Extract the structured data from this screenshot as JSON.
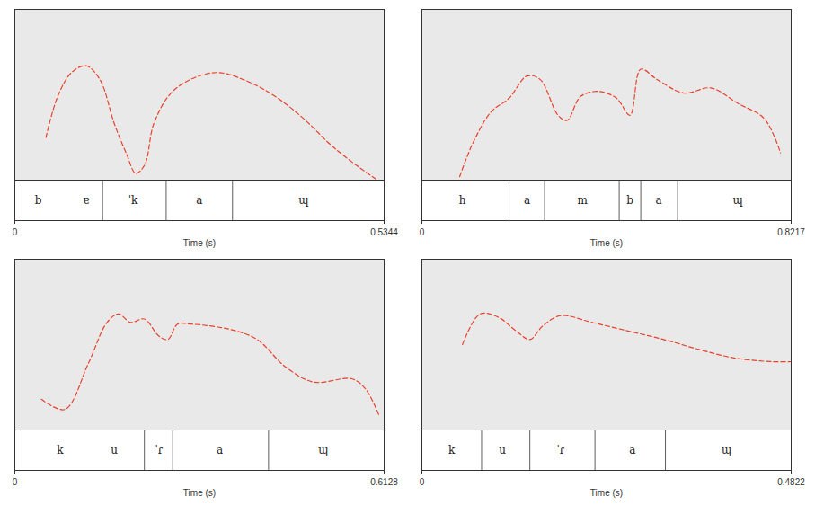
{
  "chart_data": [
    {
      "type": "line",
      "xlabel": "Time (s)",
      "xlim": [
        0,
        0.5344
      ],
      "xticks": [
        0,
        0.5344
      ],
      "ylim": [
        0,
        100
      ],
      "tick_labels": "x",
      "color": "#e8412c",
      "line_style": "dashed",
      "x": [
        0.045,
        0.062,
        0.082,
        0.103,
        0.123,
        0.144,
        0.162,
        0.175,
        0.188,
        0.201,
        0.226,
        0.26,
        0.295,
        0.336,
        0.377,
        0.418,
        0.459,
        0.5,
        0.525
      ],
      "values": [
        25,
        49,
        63,
        67,
        59,
        33,
        15,
        4,
        9,
        33,
        51,
        60,
        63,
        58,
        49,
        36,
        20,
        7,
        0
      ],
      "segments": {
        "boundaries": [
          0.127,
          0.219,
          0.315
        ],
        "labels": [
          {
            "text": "b",
            "time": 0.034
          },
          {
            "text": "ɐ",
            "time": 0.103
          },
          {
            "text": "ˈk",
            "time": 0.171
          },
          {
            "text": "a",
            "time": 0.267
          },
          {
            "text": "ɰ",
            "time": 0.418
          }
        ]
      }
    },
    {
      "type": "line",
      "xlabel": "Time (s)",
      "xlim": [
        0,
        0.8217
      ],
      "xticks": [
        0,
        0.8217
      ],
      "ylim": [
        0,
        100
      ],
      "tick_labels": "x",
      "color": "#e8412c",
      "line_style": "dashed",
      "x": [
        0.084,
        0.114,
        0.154,
        0.194,
        0.234,
        0.263,
        0.303,
        0.323,
        0.353,
        0.393,
        0.433,
        0.463,
        0.487,
        0.523,
        0.583,
        0.643,
        0.703,
        0.762,
        0.798
      ],
      "values": [
        2,
        22,
        40,
        48,
        61,
        59,
        38,
        35,
        49,
        52,
        48,
        38,
        65,
        59,
        51,
        54,
        45,
        36,
        16
      ],
      "segments": {
        "boundaries": [
          0.194,
          0.273,
          0.439,
          0.487,
          0.569
        ],
        "labels": [
          {
            "text": "h",
            "time": 0.09
          },
          {
            "text": "a",
            "time": 0.234
          },
          {
            "text": "m",
            "time": 0.357
          },
          {
            "text": "b",
            "time": 0.463
          },
          {
            "text": "a",
            "time": 0.527
          },
          {
            "text": "ɰ",
            "time": 0.703
          }
        ]
      }
    },
    {
      "type": "line",
      "xlabel": "Time (s)",
      "xlim": [
        0,
        0.6128
      ],
      "xticks": [
        0,
        0.6128
      ],
      "ylim": [
        0,
        100
      ],
      "tick_labels": "x",
      "color": "#e8412c",
      "line_style": "dashed",
      "x": [
        0.044,
        0.083,
        0.122,
        0.153,
        0.172,
        0.192,
        0.215,
        0.239,
        0.254,
        0.27,
        0.293,
        0.356,
        0.402,
        0.449,
        0.496,
        0.559,
        0.582,
        0.605
      ],
      "values": [
        18,
        12,
        39,
        63,
        68,
        63,
        65,
        55,
        53,
        62,
        62,
        59,
        53,
        37,
        28,
        30,
        24,
        8
      ],
      "segments": {
        "boundaries": [
          0.215,
          0.262,
          0.421
        ],
        "labels": [
          {
            "text": "k",
            "time": 0.075
          },
          {
            "text": "u",
            "time": 0.165
          },
          {
            "text": "ˈɾ",
            "time": 0.239
          },
          {
            "text": "a",
            "time": 0.34
          },
          {
            "text": "ɰ",
            "time": 0.512
          }
        ]
      }
    },
    {
      "type": "line",
      "xlabel": "Time (s)",
      "xlim": [
        0,
        0.4822
      ],
      "xticks": [
        0,
        0.4822
      ],
      "ylim": [
        0,
        100
      ],
      "tick_labels": "x",
      "color": "#e8412c",
      "line_style": "dashed",
      "x": [
        0.053,
        0.076,
        0.1,
        0.123,
        0.141,
        0.158,
        0.181,
        0.222,
        0.269,
        0.316,
        0.363,
        0.41,
        0.457,
        0.482
      ],
      "values": [
        50,
        68,
        66,
        58,
        53,
        61,
        67,
        63,
        58,
        53,
        47,
        42,
        40,
        40
      ],
      "segments": {
        "boundaries": [
          0.078,
          0.141,
          0.226,
          0.318
        ],
        "labels": [
          {
            "text": "k",
            "time": 0.039
          },
          {
            "text": "u",
            "time": 0.105
          },
          {
            "text": "ˈɾ",
            "time": 0.181
          },
          {
            "text": "a",
            "time": 0.275
          },
          {
            "text": "ɰ",
            "time": 0.398
          }
        ]
      }
    }
  ]
}
